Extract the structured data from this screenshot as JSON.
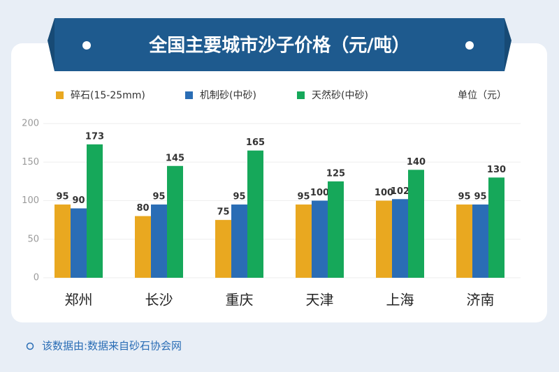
{
  "chart_data": {
    "type": "bar",
    "title": "全国主要城市沙子价格（元/吨）",
    "unit": "单位（元）",
    "categories": [
      "郑州",
      "长沙",
      "重庆",
      "天津",
      "上海",
      "济南"
    ],
    "series": [
      {
        "name": "碎石(15-25mm)",
        "color": "#e9a820",
        "values": [
          95,
          80,
          75,
          95,
          100,
          95
        ]
      },
      {
        "name": "机制砂(中砂)",
        "color": "#2a6db5",
        "values": [
          90,
          95,
          95,
          100,
          102,
          95
        ]
      },
      {
        "name": "天然砂(中砂)",
        "color": "#16a85a",
        "values": [
          173,
          145,
          165,
          125,
          140,
          130
        ]
      }
    ],
    "ylim": [
      0,
      200
    ],
    "yticks": [
      0,
      50,
      100,
      150,
      200
    ],
    "grid": true,
    "source": "该数据由:数据来自砂石协会网"
  }
}
